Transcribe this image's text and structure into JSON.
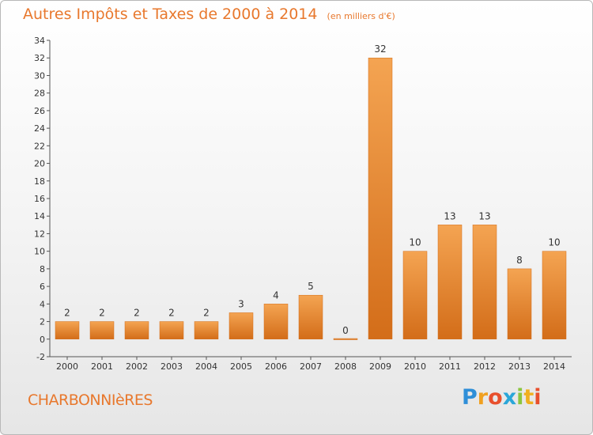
{
  "chart_data": {
    "type": "bar",
    "title": "Autres Impôts et Taxes de 2000 à 2014",
    "subtitle": "(en milliers d'€)",
    "categories": [
      "2000",
      "2001",
      "2002",
      "2003",
      "2004",
      "2005",
      "2006",
      "2007",
      "2008",
      "2009",
      "2010",
      "2011",
      "2012",
      "2013",
      "2014"
    ],
    "values": [
      2,
      2,
      2,
      2,
      2,
      3,
      4,
      5,
      0,
      32,
      10,
      13,
      13,
      8,
      10
    ],
    "ylim": [
      -2,
      34
    ],
    "yticks": [
      -2,
      0,
      2,
      4,
      6,
      8,
      10,
      12,
      14,
      16,
      18,
      20,
      22,
      24,
      26,
      28,
      30,
      32,
      34
    ],
    "grid": false,
    "bar_color": "#e8872f",
    "bar_color_light": "#f4a452",
    "bar_color_dark": "#d36d19"
  },
  "place_name": "CHARBONNIèRES",
  "brand": {
    "letters": [
      "P",
      "r",
      "o",
      "x",
      "i",
      "t",
      "i"
    ],
    "colors": [
      "#2f8fd8",
      "#f0a020",
      "#e8502d",
      "#2aa6d8",
      "#8cc63f",
      "#f0b020",
      "#e8502d"
    ]
  }
}
